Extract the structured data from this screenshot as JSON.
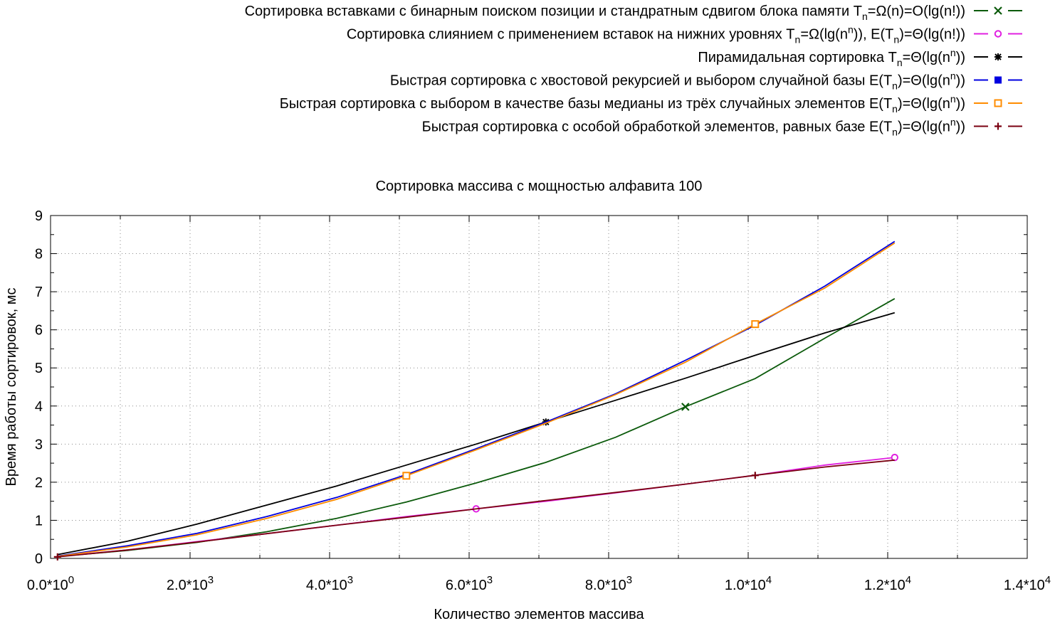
{
  "chart_data": {
    "type": "line",
    "title": "Сортировка массива с мощностью алфавита 100",
    "xlabel": "Количество элементов массива",
    "ylabel": "Время работы сортировок, мс",
    "xlim": [
      0,
      14000
    ],
    "ylim": [
      0,
      9
    ],
    "grid": true,
    "legend_position": "top-right",
    "x_ticks": [
      {
        "value": 0,
        "mantissa": "0.0",
        "exp": "0"
      },
      {
        "value": 2000,
        "mantissa": "2.0",
        "exp": "3"
      },
      {
        "value": 4000,
        "mantissa": "4.0",
        "exp": "3"
      },
      {
        "value": 6000,
        "mantissa": "6.0",
        "exp": "3"
      },
      {
        "value": 8000,
        "mantissa": "8.0",
        "exp": "3"
      },
      {
        "value": 10000,
        "mantissa": "1.0",
        "exp": "4"
      },
      {
        "value": 12000,
        "mantissa": "1.2",
        "exp": "4"
      },
      {
        "value": 14000,
        "mantissa": "1.4",
        "exp": "4"
      }
    ],
    "y_ticks": [
      "0",
      "1",
      "2",
      "3",
      "4",
      "5",
      "6",
      "7",
      "8",
      "9"
    ],
    "series": [
      {
        "legend": [
          {
            "text": "Сортировка вставками с бинарным поиском позиции и стандратным сдвигом блока памяти T"
          },
          {
            "text": "n",
            "sub": true
          },
          {
            "text": "=Ω(n)=O(lg(n!))"
          }
        ],
        "color": "#0b5a0b",
        "marker": "x",
        "marker_x": [
          9100
        ],
        "x": [
          100,
          1100,
          2100,
          3100,
          4100,
          5100,
          6100,
          7100,
          8100,
          9100,
          10100,
          11100,
          12100
        ],
        "y": [
          0.05,
          0.21,
          0.42,
          0.7,
          1.05,
          1.48,
          1.98,
          2.52,
          3.18,
          3.98,
          4.72,
          5.78,
          6.82
        ]
      },
      {
        "legend": [
          {
            "text": "Сортировка слиянием с применением вставок на нижних уровнях T"
          },
          {
            "text": "n",
            "sub": true
          },
          {
            "text": "=Ω(lg(n"
          },
          {
            "text": "n",
            "sup": true
          },
          {
            "text": ")), E(T"
          },
          {
            "text": "n",
            "sub": true
          },
          {
            "text": ")=Θ(lg(n!))"
          }
        ],
        "color": "#e020e0",
        "marker": "circle",
        "marker_x": [
          6100,
          12100
        ],
        "x": [
          100,
          1100,
          2100,
          3100,
          4100,
          5100,
          6100,
          7100,
          8100,
          9100,
          10100,
          11100,
          12100
        ],
        "y": [
          0.05,
          0.22,
          0.44,
          0.65,
          0.87,
          1.1,
          1.3,
          1.5,
          1.72,
          1.95,
          2.18,
          2.45,
          2.65
        ]
      },
      {
        "legend": [
          {
            "text": "Пирамидальная сортировка T"
          },
          {
            "text": "n",
            "sub": true
          },
          {
            "text": "=Θ(lg(n"
          },
          {
            "text": "n",
            "sup": true
          },
          {
            "text": "))"
          }
        ],
        "color": "#000000",
        "marker": "star",
        "marker_x": [
          7100
        ],
        "x": [
          100,
          1100,
          2100,
          3100,
          4100,
          5100,
          6100,
          7100,
          8100,
          9100,
          10100,
          11100,
          12100
        ],
        "y": [
          0.1,
          0.45,
          0.9,
          1.4,
          1.9,
          2.45,
          3.0,
          3.58,
          4.15,
          4.73,
          5.33,
          5.92,
          6.45
        ]
      },
      {
        "legend": [
          {
            "text": "Быстрая сортировка с хвостовой рекурсией и выбором случайной базы E(T"
          },
          {
            "text": "n",
            "sub": true
          },
          {
            "text": ")=Θ(lg(n"
          },
          {
            "text": "n",
            "sup": true
          },
          {
            "text": "))"
          }
        ],
        "color": "#0000e0",
        "marker": "square-filled",
        "marker_x": [],
        "x": [
          100,
          1100,
          2100,
          3100,
          4100,
          5100,
          6100,
          7100,
          8100,
          9100,
          10100,
          11100,
          12100
        ],
        "y": [
          0.06,
          0.33,
          0.66,
          1.1,
          1.6,
          2.2,
          2.88,
          3.58,
          4.32,
          5.2,
          6.12,
          7.15,
          8.32
        ]
      },
      {
        "legend": [
          {
            "text": "Быстрая сортировка с выбором в качестве базы медианы из трёх случайных элементов E(T"
          },
          {
            "text": "n",
            "sub": true
          },
          {
            "text": ")=Θ(lg(n"
          },
          {
            "text": "n",
            "sup": true
          },
          {
            "text": "))"
          }
        ],
        "color": "#ff8c00",
        "marker": "square",
        "marker_x": [
          5100,
          10100
        ],
        "x": [
          100,
          1100,
          2100,
          3100,
          4100,
          5100,
          6100,
          7100,
          8100,
          9100,
          10100,
          11100,
          12100
        ],
        "y": [
          0.05,
          0.3,
          0.62,
          1.05,
          1.55,
          2.17,
          2.85,
          3.55,
          4.3,
          5.15,
          6.15,
          7.1,
          8.28
        ]
      },
      {
        "legend": [
          {
            "text": "Быстрая сортировка с особой обработкой элементов, равных базе E(T"
          },
          {
            "text": "n",
            "sub": true
          },
          {
            "text": ")=Θ(lg(n"
          },
          {
            "text": "n",
            "sup": true
          },
          {
            "text": "))"
          }
        ],
        "color": "#7a0010",
        "marker": "plus",
        "marker_x": [
          100,
          10100
        ],
        "x": [
          100,
          1100,
          2100,
          3100,
          4100,
          5100,
          6100,
          7100,
          8100,
          9100,
          10100,
          11100,
          12100
        ],
        "y": [
          0.04,
          0.22,
          0.43,
          0.65,
          0.87,
          1.08,
          1.3,
          1.52,
          1.73,
          1.95,
          2.18,
          2.4,
          2.58
        ]
      }
    ]
  }
}
